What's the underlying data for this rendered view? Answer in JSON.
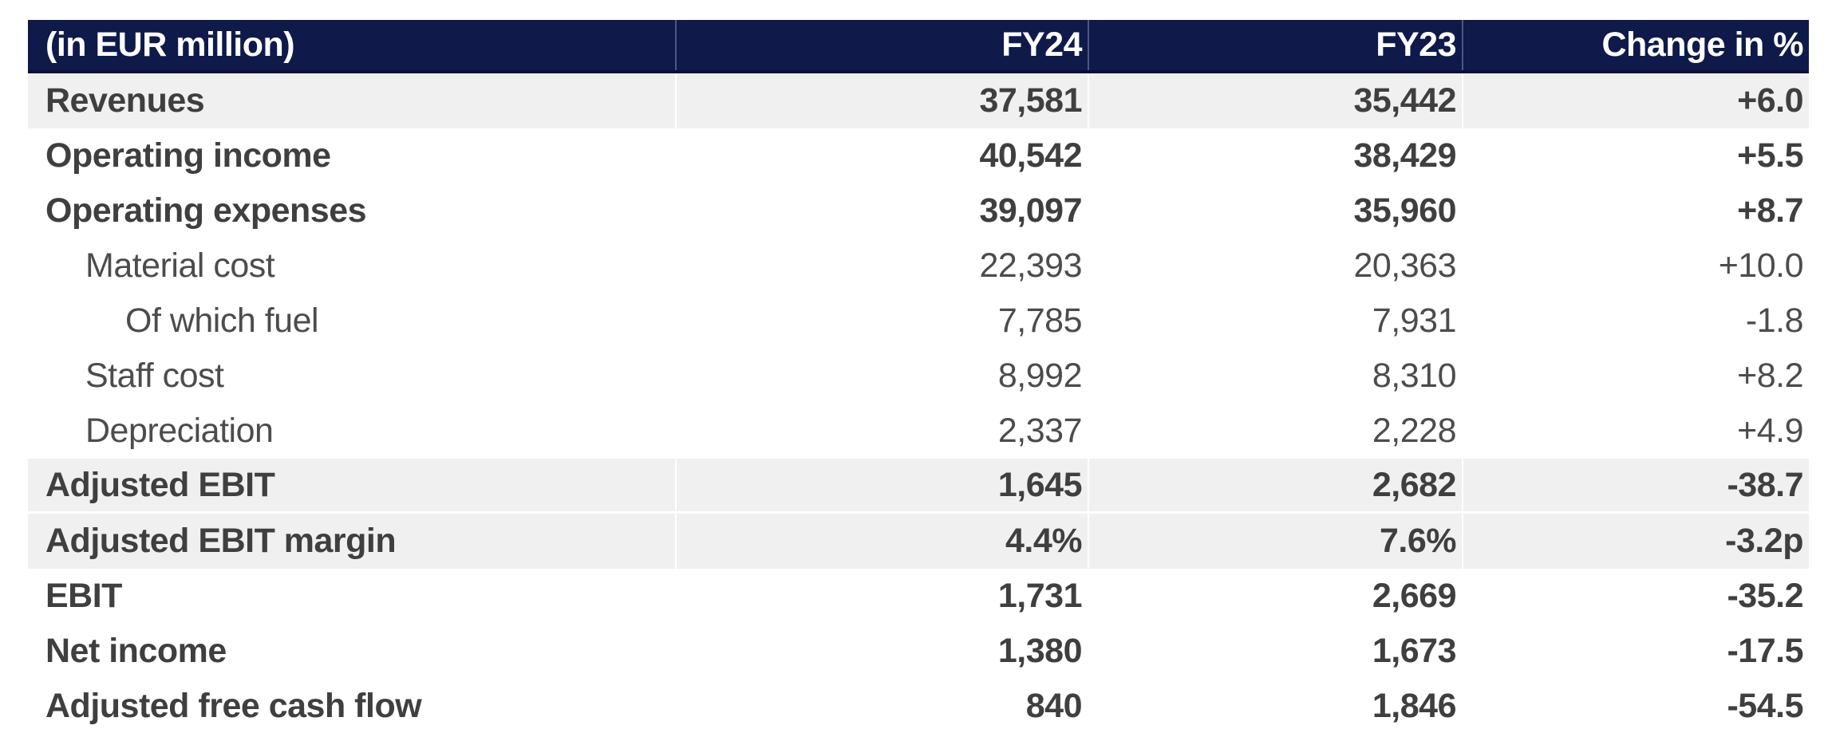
{
  "colors": {
    "header_bg": "#0f1a4b",
    "header_border_bottom": "#0a1139",
    "header_text": "#ffffff",
    "band_bg": "#f0f0f1",
    "text_bold": "#3f3f3f",
    "text_regular": "#4c4c4c",
    "column_divider_header": "#4b5880",
    "column_divider_band": "#ffffff"
  },
  "table": {
    "header": {
      "label": "(in EUR million)",
      "fy24": "FY24",
      "fy23": "FY23",
      "change": "Change in %"
    },
    "rows": [
      {
        "label": "Revenues",
        "fy24": "37,581",
        "fy23": "35,442",
        "change": "+6.0"
      },
      {
        "label": "Operating income",
        "fy24": "40,542",
        "fy23": "38,429",
        "change": "+5.5"
      },
      {
        "label": "Operating expenses",
        "fy24": "39,097",
        "fy23": "35,960",
        "change": "+8.7"
      },
      {
        "label": "Material cost",
        "fy24": "22,393",
        "fy23": "20,363",
        "change": "+10.0"
      },
      {
        "label": "Of which fuel",
        "fy24": "7,785",
        "fy23": "7,931",
        "change": "-1.8"
      },
      {
        "label": "Staff cost",
        "fy24": "8,992",
        "fy23": "8,310",
        "change": "+8.2"
      },
      {
        "label": "Depreciation",
        "fy24": "2,337",
        "fy23": "2,228",
        "change": "+4.9"
      },
      {
        "label": "Adjusted EBIT",
        "fy24": "1,645",
        "fy23": "2,682",
        "change": "-38.7"
      },
      {
        "label": "Adjusted EBIT margin",
        "fy24": "4.4%",
        "fy23": "7.6%",
        "change": "-3.2p"
      },
      {
        "label": "EBIT",
        "fy24": "1,731",
        "fy23": "2,669",
        "change": "-35.2"
      },
      {
        "label": "Net income",
        "fy24": "1,380",
        "fy23": "1,673",
        "change": "-17.5"
      },
      {
        "label": "Adjusted free cash flow",
        "fy24": "840",
        "fy23": "1,846",
        "change": "-54.5"
      }
    ]
  },
  "chart_data": {
    "type": "table",
    "title": "(in EUR million)",
    "columns": [
      "(in EUR million)",
      "FY24",
      "FY23",
      "Change in %"
    ],
    "rows": [
      [
        "Revenues",
        37581,
        35442,
        "+6.0"
      ],
      [
        "Operating income",
        40542,
        38429,
        "+5.5"
      ],
      [
        "Operating expenses",
        39097,
        35960,
        "+8.7"
      ],
      [
        "Material cost",
        22393,
        20363,
        "+10.0"
      ],
      [
        "Of which fuel",
        7785,
        7931,
        "-1.8"
      ],
      [
        "Staff cost",
        8992,
        8310,
        "+8.2"
      ],
      [
        "Depreciation",
        2337,
        2228,
        "+4.9"
      ],
      [
        "Adjusted EBIT",
        1645,
        2682,
        "-38.7"
      ],
      [
        "Adjusted EBIT margin",
        "4.4%",
        "7.6%",
        "-3.2p"
      ],
      [
        "EBIT",
        1731,
        2669,
        "-35.2"
      ],
      [
        "Net income",
        1380,
        1673,
        "-17.5"
      ],
      [
        "Adjusted free cash flow",
        840,
        1846,
        "-54.5"
      ]
    ]
  }
}
